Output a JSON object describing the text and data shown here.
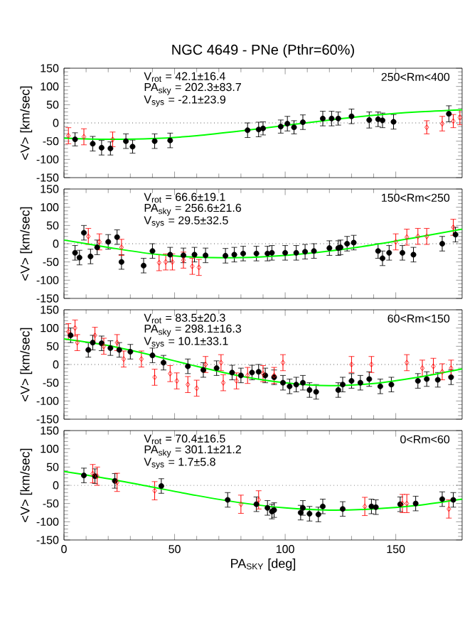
{
  "chart_data": [
    {
      "type": "scatter",
      "title": "NGC 4649 - PNe (Pthr=60%)",
      "ylabel": "<V> [km/sec]",
      "xlim": [
        0,
        180
      ],
      "ylim": [
        -150,
        150
      ],
      "xticks": [
        0,
        50,
        100,
        150
      ],
      "yticks": [
        -150,
        -100,
        -50,
        0,
        50,
        100,
        150
      ],
      "tick_labels": "y",
      "annotations": [
        "V$_{rot}$ = 42.1±16.4",
        "PA$_{sky}$ = 202.3±83.7",
        "V$_{sys}$ = -2.1±23.9",
        "250<Rm<400"
      ],
      "ref_lines": [
        {
          "axis": "y",
          "value": 0,
          "line_style": "dotted",
          "color": "#000000"
        }
      ],
      "series": [
        {
          "color": "#000000",
          "marker": "circle",
          "x": [
            5,
            13,
            17,
            21,
            28,
            31,
            41,
            48,
            83,
            88,
            90,
            98,
            101,
            104,
            108,
            117,
            121,
            124,
            130,
            138,
            142,
            144,
            149,
            174
          ],
          "values": [
            -45,
            -57,
            -68,
            -70,
            -50,
            -65,
            -50,
            -48,
            -20,
            -18,
            -15,
            -10,
            -2,
            -12,
            2,
            12,
            12,
            12,
            18,
            8,
            10,
            7,
            3,
            25
          ],
          "errors": [
            18,
            20,
            20,
            18,
            20,
            18,
            20,
            20,
            20,
            20,
            18,
            18,
            20,
            18,
            20,
            20,
            20,
            18,
            20,
            22,
            20,
            20,
            20,
            22
          ]
        },
        {
          "color": "#ff0000",
          "marker": "diamond",
          "x": [
            2,
            9,
            22,
            164,
            171,
            176,
            179
          ],
          "values": [
            -35,
            -38,
            -45,
            -12,
            -2,
            5,
            15
          ],
          "errors": [
            22,
            22,
            20,
            18,
            20,
            18,
            20
          ]
        },
        {
          "type": "line",
          "color": "#00ff00",
          "x": [
            0,
            20,
            40,
            60,
            80,
            100,
            120,
            140,
            160,
            180
          ],
          "values": [
            -42,
            -45,
            -43,
            -35,
            -22,
            -7,
            8,
            21,
            30,
            36
          ]
        }
      ]
    },
    {
      "type": "scatter",
      "ylabel": "<V> [km/sec]",
      "xlim": [
        0,
        180
      ],
      "ylim": [
        -150,
        150
      ],
      "xticks": [
        0,
        50,
        100,
        150
      ],
      "yticks": [
        -150,
        -100,
        -50,
        0,
        50,
        100,
        150
      ],
      "tick_labels": "y",
      "annotations": [
        "V$_{rot}$ = 66.6±19.1",
        "PA$_{sky}$ = 256.6±21.6",
        "V$_{sys}$ = 29.5±32.5",
        "150<Rm<250"
      ],
      "ref_lines": [
        {
          "axis": "y",
          "value": 0,
          "line_style": "dotted",
          "color": "#000000"
        }
      ],
      "series": [
        {
          "color": "#000000",
          "marker": "circle",
          "x": [
            5,
            7,
            9,
            12,
            15,
            20,
            24,
            26,
            36,
            40,
            48,
            54,
            59,
            64,
            73,
            77,
            81,
            87,
            92,
            94,
            100,
            105,
            109,
            113,
            120,
            124,
            125,
            128,
            131,
            142,
            144,
            147,
            153,
            158,
            171,
            177
          ],
          "values": [
            -25,
            -38,
            30,
            -35,
            -10,
            5,
            18,
            -50,
            -60,
            -20,
            -30,
            -32,
            -30,
            -32,
            -33,
            -30,
            -27,
            -27,
            -27,
            -25,
            -25,
            -25,
            -22,
            -20,
            -12,
            -12,
            -10,
            0,
            3,
            -20,
            -40,
            -25,
            -25,
            -30,
            0,
            25
          ],
          "errors": [
            20,
            20,
            20,
            20,
            20,
            20,
            20,
            20,
            20,
            20,
            20,
            20,
            20,
            20,
            20,
            20,
            20,
            20,
            20,
            20,
            20,
            20,
            20,
            20,
            20,
            20,
            20,
            20,
            20,
            20,
            20,
            20,
            20,
            20,
            20,
            20
          ]
        },
        {
          "color": "#ff0000",
          "marker": "diamond",
          "x": [
            11,
            16,
            26,
            43,
            46,
            49,
            54,
            58,
            61,
            150,
            155,
            160,
            164,
            176
          ],
          "values": [
            20,
            5,
            -10,
            -52,
            -50,
            -50,
            -45,
            -62,
            -65,
            5,
            18,
            20,
            20,
            45
          ],
          "errors": [
            22,
            22,
            22,
            22,
            22,
            22,
            22,
            22,
            22,
            22,
            22,
            22,
            22,
            22
          ]
        },
        {
          "type": "line",
          "color": "#00ff00",
          "x": [
            0,
            20,
            40,
            60,
            80,
            100,
            120,
            140,
            160,
            180
          ],
          "values": [
            10,
            -10,
            -28,
            -37,
            -38,
            -32,
            -20,
            -3,
            18,
            40
          ]
        }
      ]
    },
    {
      "type": "scatter",
      "ylabel": "<V> [km/sec]",
      "xlim": [
        0,
        180
      ],
      "ylim": [
        -150,
        150
      ],
      "xticks": [
        0,
        50,
        100,
        150
      ],
      "yticks": [
        -150,
        -100,
        -50,
        0,
        50,
        100,
        150
      ],
      "tick_labels": "y",
      "annotations": [
        "V$_{rot}$ = 83.5±20.3",
        "PA$_{sky}$ = 298.1±16.3",
        "V$_{sys}$ = 10.1±33.1",
        "60<Rm<150"
      ],
      "ref_lines": [
        {
          "axis": "y",
          "value": 0,
          "line_style": "dotted",
          "color": "#000000"
        }
      ],
      "series": [
        {
          "color": "#000000",
          "marker": "circle",
          "x": [
            3,
            11,
            13,
            17,
            21,
            25,
            30,
            40,
            45,
            56,
            63,
            69,
            76,
            80,
            85,
            88,
            91,
            95,
            99,
            102,
            105,
            108,
            111,
            114,
            124,
            126,
            130,
            134,
            138,
            143,
            148,
            160,
            164,
            169,
            175
          ],
          "values": [
            80,
            40,
            60,
            58,
            45,
            40,
            35,
            25,
            5,
            -5,
            -15,
            -10,
            -22,
            -30,
            -22,
            -20,
            -30,
            -35,
            -50,
            -60,
            -55,
            -50,
            -70,
            -75,
            -70,
            -55,
            -45,
            -50,
            -40,
            -60,
            -55,
            -45,
            -40,
            -42,
            -35
          ],
          "errors": [
            20,
            20,
            20,
            20,
            20,
            20,
            20,
            20,
            20,
            20,
            20,
            20,
            20,
            20,
            20,
            20,
            20,
            20,
            20,
            20,
            20,
            20,
            20,
            20,
            20,
            20,
            20,
            20,
            20,
            20,
            20,
            20,
            20,
            20,
            20
          ]
        },
        {
          "color": "#ff0000",
          "marker": "diamond",
          "x": [
            2,
            5,
            6,
            14,
            18,
            24,
            27,
            35,
            41,
            48,
            51,
            56,
            60,
            64,
            71,
            72,
            78,
            83,
            90,
            95,
            99,
            130,
            139,
            155,
            162,
            167,
            171,
            175
          ],
          "values": [
            90,
            100,
            60,
            80,
            50,
            60,
            15,
            15,
            -35,
            -25,
            -45,
            -55,
            -65,
            0,
            5,
            -50,
            -45,
            -30,
            -25,
            -30,
            5,
            0,
            0,
            5,
            -10,
            -5,
            -20,
            -10
          ],
          "errors": [
            22,
            22,
            22,
            22,
            22,
            22,
            22,
            22,
            22,
            22,
            22,
            22,
            22,
            22,
            22,
            22,
            22,
            22,
            22,
            22,
            22,
            22,
            22,
            22,
            22,
            22,
            22,
            22
          ]
        },
        {
          "type": "line",
          "color": "#00ff00",
          "x": [
            0,
            20,
            40,
            60,
            80,
            100,
            120,
            140,
            160,
            180
          ],
          "values": [
            70,
            52,
            25,
            -5,
            -32,
            -50,
            -58,
            -52,
            -35,
            -12
          ]
        }
      ]
    },
    {
      "type": "scatter",
      "ylabel": "<V> [km/sec]",
      "xlabel": "PA$_{SKY}$ [deg]",
      "xlim": [
        0,
        180
      ],
      "ylim": [
        -150,
        150
      ],
      "xticks": [
        0,
        50,
        100,
        150
      ],
      "yticks": [
        -150,
        -100,
        -50,
        0,
        50,
        100,
        150
      ],
      "annotations": [
        "V$_{rot}$ = 70.4±16.5",
        "PA$_{sky}$ = 301.1±21.2",
        "V$_{sys}$ = 1.7±5.8",
        "0<Rm<60"
      ],
      "ref_lines": [
        {
          "axis": "y",
          "value": 0,
          "line_style": "dotted",
          "color": "#000000"
        }
      ],
      "series": [
        {
          "color": "#000000",
          "marker": "circle",
          "x": [
            9,
            14,
            23,
            44,
            74,
            87,
            92,
            94,
            95,
            107,
            108,
            111,
            115,
            117,
            126,
            139,
            141,
            152,
            159,
            171,
            176
          ],
          "values": [
            27,
            25,
            12,
            -2,
            -40,
            -52,
            -62,
            -72,
            -68,
            -75,
            -62,
            -78,
            -80,
            -58,
            -65,
            -58,
            -60,
            -52,
            -50,
            -38,
            -40
          ],
          "errors": [
            20,
            20,
            20,
            20,
            20,
            20,
            20,
            20,
            20,
            20,
            20,
            20,
            20,
            20,
            20,
            20,
            20,
            20,
            20,
            20,
            20
          ]
        },
        {
          "color": "#ff0000",
          "marker": "diamond",
          "x": [
            13,
            15,
            24,
            41,
            80,
            88,
            136,
            153,
            155,
            174
          ],
          "values": [
            32,
            25,
            8,
            -15,
            -52,
            -40,
            -58,
            -50,
            -50,
            -65
          ],
          "errors": [
            25,
            25,
            25,
            25,
            25,
            25,
            25,
            25,
            25,
            25
          ]
        },
        {
          "type": "line",
          "color": "#00ff00",
          "x": [
            0,
            20,
            40,
            60,
            80,
            100,
            120,
            140,
            160,
            180
          ],
          "values": [
            38,
            18,
            -5,
            -28,
            -48,
            -62,
            -68,
            -65,
            -55,
            -38
          ]
        }
      ]
    }
  ]
}
